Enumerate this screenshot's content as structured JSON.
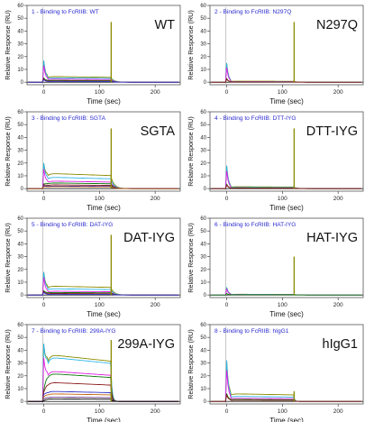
{
  "shared": {
    "xlabel": "Time (sec)",
    "ylabel": "Relative Response (RU)",
    "xticks": [
      0,
      100,
      200
    ],
    "yticks": [
      0,
      10,
      20,
      30,
      40,
      50,
      60
    ],
    "xlim": [
      -30,
      245
    ],
    "ylim": [
      -2,
      60
    ]
  },
  "colors": [
    "#8a8a00",
    "#2db7e8",
    "#e020e0",
    "#0a7a0a",
    "#8b1a1a",
    "#3030c8",
    "#c06010",
    "#6b3d8a",
    "#000000"
  ],
  "chart_data": [
    {
      "type": "line",
      "title": "1 - Binding to FcRIIB: WT",
      "label": "WT",
      "plateaus": [
        4.5,
        3.5,
        2.5,
        1.5,
        1,
        0.6
      ],
      "spike": 47,
      "start_spike": 17,
      "decay": 1.0
    },
    {
      "type": "line",
      "title": "2 - Binding to FcRIIB: N297Q",
      "label": "N297Q",
      "plateaus": [
        0.8,
        0.5,
        0.4,
        0.3,
        0.2
      ],
      "spike": 47,
      "start_spike": 15,
      "decay": 1.0
    },
    {
      "type": "line",
      "title": "3 - Binding to FcRIIB: SGTA",
      "label": "SGTA",
      "plateaus": [
        12,
        9,
        6,
        4.5,
        3,
        2,
        1.5
      ],
      "spike": 47,
      "start_spike": 20,
      "decay": 1.0
    },
    {
      "type": "line",
      "title": "4 - Binding to FcRIIB: DTT-IYG",
      "label": "DTT-IYG",
      "plateaus": [
        1.5,
        1,
        0.6,
        0.4,
        0.3
      ],
      "spike": 47,
      "start_spike": 18,
      "decay": 1.0
    },
    {
      "type": "line",
      "title": "5 - Binding to FcRIIB: DAT-IYG",
      "label": "DAT-IYG",
      "plateaus": [
        7,
        5,
        3,
        2,
        1.2,
        0.6
      ],
      "spike": 47,
      "start_spike": 18,
      "decay": 1.0
    },
    {
      "type": "line",
      "title": "6 - Binding to FcRIIB: HAT-IYG",
      "label": "HAT-IYG",
      "plateaus": [
        0.6,
        0.4,
        0.3,
        0.2
      ],
      "spike": 30,
      "start_spike": 6,
      "decay": 1.0
    },
    {
      "type": "line",
      "title": "7 - Binding to FcRIIB: 299A-IYG",
      "label": "299A-IYG",
      "plateaus": [
        37,
        35,
        24,
        22,
        15,
        8,
        6,
        3.5,
        2
      ],
      "spike": 48,
      "start_spike": 45,
      "decay": 0.35
    },
    {
      "type": "line",
      "title": "8 - Binding to FcRIIB: hIgG1",
      "label": "hIgG1",
      "plateaus": [
        6,
        4,
        2.5,
        1.5,
        1
      ],
      "spike": 8,
      "start_spike": 32,
      "decay": 0.3
    }
  ]
}
